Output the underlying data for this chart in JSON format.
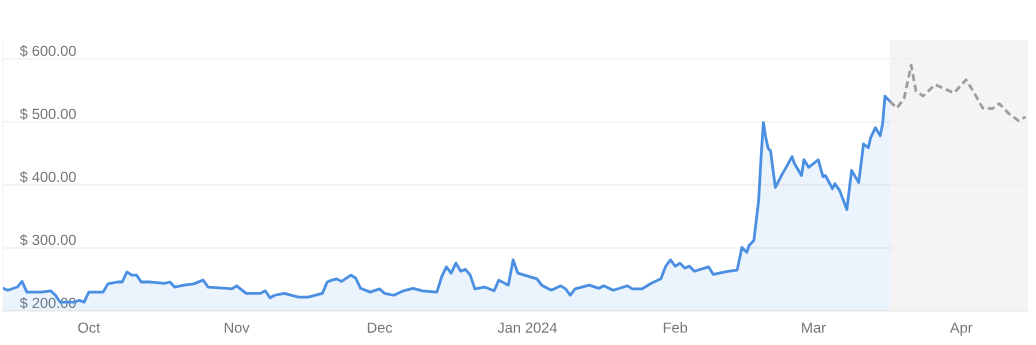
{
  "chart_data": {
    "type": "area",
    "xlim": [
      "2023-09-13",
      "2024-04-15"
    ],
    "xticks": [
      {
        "value": "2023-10-01",
        "label": "Oct"
      },
      {
        "value": "2023-11-01",
        "label": "Nov"
      },
      {
        "value": "2023-12-01",
        "label": "Dec"
      },
      {
        "value": "2024-01-01",
        "label": "Jan 2024"
      },
      {
        "value": "2024-02-01",
        "label": "Feb"
      },
      {
        "value": "2024-03-01",
        "label": "Mar"
      },
      {
        "value": "2024-04-01",
        "label": "Apr"
      }
    ],
    "ylim": [
      200,
      630
    ],
    "yticks": [
      {
        "value": 200,
        "label": "$ 200.00"
      },
      {
        "value": 300,
        "label": "$ 300.00"
      },
      {
        "value": 400,
        "label": "$ 400.00"
      },
      {
        "value": 500,
        "label": "$ 500.00"
      },
      {
        "value": 600,
        "label": "$ 600.00"
      }
    ],
    "grid": "y",
    "bands": [
      {
        "axis": "x",
        "from": "2024-03-17",
        "to": "2024-04-15",
        "color": "#f4f4f4"
      }
    ],
    "series": [
      {
        "color": "#4a8fe2",
        "line_style": "solid",
        "x": [
          "2023-09-13",
          "2023-09-14",
          "2023-09-16",
          "2023-09-17",
          "2023-09-18",
          "2023-09-21",
          "2023-09-23",
          "2023-09-24",
          "2023-09-25",
          "2023-09-28",
          "2023-09-29",
          "2023-09-30",
          "2023-10-01",
          "2023-10-04",
          "2023-10-05",
          "2023-10-07",
          "2023-10-08",
          "2023-10-09",
          "2023-10-10",
          "2023-10-11",
          "2023-10-12",
          "2023-10-14",
          "2023-10-17",
          "2023-10-18",
          "2023-10-19",
          "2023-10-21",
          "2023-10-23",
          "2023-10-25",
          "2023-10-26",
          "2023-10-30",
          "2023-10-31",
          "2023-11-01",
          "2023-11-03",
          "2023-11-06",
          "2023-11-07",
          "2023-11-08",
          "2023-11-09",
          "2023-11-11",
          "2023-11-14",
          "2023-11-16",
          "2023-11-19",
          "2023-11-20",
          "2023-11-21",
          "2023-11-22",
          "2023-11-23",
          "2023-11-25",
          "2023-11-26",
          "2023-11-27",
          "2023-11-29",
          "2023-12-01",
          "2023-12-02",
          "2023-12-04",
          "2023-12-06",
          "2023-12-08",
          "2023-12-10",
          "2023-12-13",
          "2023-12-14",
          "2023-12-15",
          "2023-12-16",
          "2023-12-17",
          "2023-12-18",
          "2023-12-19",
          "2023-12-20",
          "2023-12-21",
          "2023-12-23",
          "2023-12-25",
          "2023-12-26",
          "2023-12-28",
          "2023-12-29",
          "2023-12-30",
          "2024-01-03",
          "2024-01-04",
          "2024-01-06",
          "2024-01-08",
          "2024-01-09",
          "2024-01-10",
          "2024-01-11",
          "2024-01-14",
          "2024-01-16",
          "2024-01-17",
          "2024-01-19",
          "2024-01-22",
          "2024-01-23",
          "2024-01-25",
          "2024-01-27",
          "2024-01-29",
          "2024-01-30",
          "2024-01-31",
          "2024-02-01",
          "2024-02-02",
          "2024-02-03",
          "2024-02-04",
          "2024-02-05",
          "2024-02-08",
          "2024-02-09",
          "2024-02-12",
          "2024-02-14",
          "2024-02-15",
          "2024-02-16",
          "2024-02-16T12:00",
          "2024-02-17T12:00",
          "2024-02-18T12:00",
          "2024-02-19",
          "2024-02-19T12:00",
          "2024-02-20",
          "2024-02-20T12:00",
          "2024-02-21",
          "2024-02-22",
          "2024-02-23T12:00",
          "2024-02-24T12:00",
          "2024-02-25T12:00",
          "2024-02-26",
          "2024-02-27T12:00",
          "2024-02-28",
          "2024-02-29",
          "2024-03-02",
          "2024-03-03",
          "2024-03-03T12:00",
          "2024-03-05",
          "2024-03-05T12:00",
          "2024-03-06T12:00",
          "2024-03-08",
          "2024-03-09",
          "2024-03-10T12:00",
          "2024-03-11T12:00",
          "2024-03-12T12:00",
          "2024-03-13",
          "2024-03-14",
          "2024-03-15",
          "2024-03-15T12:00",
          "2024-03-16",
          "2024-03-17"
        ],
        "values": [
          236,
          233,
          238,
          247,
          230,
          230,
          232,
          225,
          214,
          214,
          217,
          214,
          230,
          230,
          243,
          246,
          246,
          262,
          257,
          257,
          246,
          246,
          244,
          246,
          238,
          241,
          243,
          249,
          238,
          236,
          235,
          240,
          228,
          228,
          232,
          221,
          225,
          228,
          222,
          222,
          228,
          246,
          249,
          251,
          247,
          257,
          252,
          236,
          230,
          235,
          228,
          225,
          232,
          236,
          232,
          230,
          254,
          270,
          260,
          276,
          263,
          266,
          257,
          235,
          238,
          232,
          249,
          241,
          281,
          260,
          251,
          241,
          233,
          240,
          235,
          225,
          235,
          241,
          236,
          240,
          233,
          240,
          235,
          235,
          244,
          251,
          271,
          281,
          271,
          276,
          268,
          271,
          263,
          270,
          258,
          263,
          265,
          301,
          293,
          304,
          312,
          375,
          443,
          499,
          475,
          458,
          454,
          396,
          418,
          431,
          445,
          434,
          415,
          440,
          428,
          440,
          413,
          415,
          394,
          402,
          391,
          361,
          423,
          404,
          465,
          459,
          475,
          491,
          478,
          497,
          541,
          533
        ]
      },
      {
        "type": "line",
        "color": "#9e9e9e",
        "line_style": "dashed",
        "x": [
          "2024-03-17",
          "2024-03-18T12:00",
          "2024-03-20",
          "2024-03-21T12:00",
          "2024-03-22T12:00",
          "2024-03-24",
          "2024-03-26T12:00",
          "2024-03-30T12:00",
          "2024-04-02",
          "2024-04-03T12:00",
          "2024-04-05T12:00",
          "2024-04-07T12:00",
          "2024-04-09",
          "2024-04-11",
          "2024-04-13",
          "2024-04-14T12:00"
        ],
        "values": [
          533,
          522,
          537,
          590,
          549,
          541,
          559,
          546,
          567,
          549,
          522,
          521,
          529,
          513,
          502,
          508
        ]
      }
    ]
  }
}
